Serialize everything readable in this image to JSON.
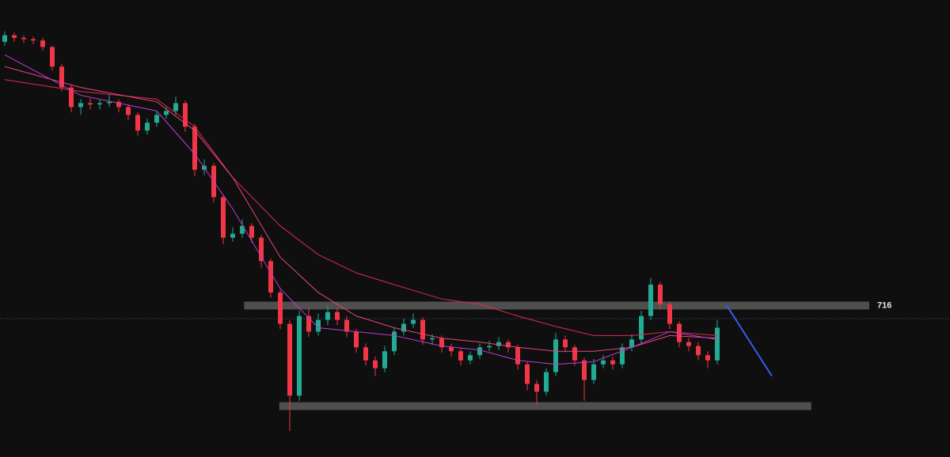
{
  "chart_data": {
    "type": "candlestick",
    "ylim": [
      600,
      950
    ],
    "up_color": "#22ab94",
    "down_color": "#f23645",
    "open": [
      918,
      923,
      921,
      920,
      919,
      914,
      899,
      883,
      868,
      871,
      870,
      871,
      872,
      868,
      862,
      850,
      856,
      862,
      865,
      871,
      853,
      820,
      823,
      799,
      768,
      771,
      777,
      768,
      750,
      726,
      702,
      647,
      708,
      696,
      705,
      711,
      705,
      696,
      684,
      674,
      668,
      681,
      696,
      702,
      705,
      690,
      691,
      684,
      681,
      674,
      678,
      684,
      685,
      688,
      684,
      671,
      656,
      650,
      665,
      690,
      684,
      674,
      659,
      671,
      674,
      671,
      684,
      690,
      708,
      732,
      717,
      702,
      688,
      685,
      678,
      674
    ],
    "high": [
      926,
      925,
      923,
      922,
      921,
      915,
      901,
      885,
      874,
      875,
      874,
      878,
      874,
      870,
      864,
      859,
      865,
      868,
      876,
      873,
      855,
      828,
      825,
      801,
      776,
      782,
      779,
      770,
      752,
      728,
      705,
      712,
      714,
      710,
      716,
      714,
      708,
      698,
      687,
      677,
      685,
      699,
      706,
      710,
      707,
      694,
      693,
      687,
      683,
      681,
      687,
      689,
      692,
      690,
      686,
      673,
      659,
      668,
      695,
      693,
      686,
      676,
      675,
      678,
      677,
      687,
      694,
      712,
      737,
      734,
      719,
      704,
      691,
      688,
      681,
      705
    ],
    "low": [
      915,
      918,
      917,
      916,
      911,
      896,
      880,
      864,
      862,
      866,
      866,
      868,
      864,
      858,
      846,
      847,
      853,
      859,
      862,
      849,
      815,
      816,
      795,
      763,
      765,
      768,
      764,
      745,
      722,
      698,
      620,
      643,
      692,
      693,
      701,
      701,
      692,
      680,
      670,
      662,
      665,
      678,
      693,
      699,
      686,
      686,
      680,
      677,
      670,
      671,
      675,
      681,
      682,
      680,
      667,
      651,
      640,
      647,
      662,
      680,
      670,
      643,
      656,
      668,
      667,
      668,
      681,
      687,
      705,
      713,
      698,
      684,
      681,
      674,
      668,
      671
    ],
    "close": [
      923,
      921,
      920,
      919,
      914,
      899,
      883,
      868,
      871,
      870,
      871,
      872,
      868,
      862,
      850,
      856,
      862,
      865,
      871,
      853,
      820,
      823,
      799,
      768,
      771,
      777,
      768,
      750,
      726,
      702,
      647,
      708,
      696,
      705,
      711,
      705,
      696,
      684,
      674,
      668,
      681,
      696,
      702,
      705,
      690,
      691,
      684,
      681,
      674,
      678,
      684,
      685,
      688,
      684,
      671,
      656,
      650,
      665,
      690,
      684,
      674,
      659,
      671,
      674,
      671,
      684,
      690,
      708,
      732,
      717,
      702,
      688,
      685,
      678,
      674,
      699
    ],
    "moving_averages": [
      {
        "color": "#e0294f",
        "x": [
          0,
          8,
          16,
          20,
          24,
          29,
          33,
          37,
          41,
          46,
          50,
          54,
          58,
          62,
          66,
          70,
          75
        ],
        "values": [
          889,
          880,
          874,
          853,
          814,
          777,
          755,
          741,
          732,
          721,
          717,
          708,
          700,
          693,
          693,
          696,
          693
        ]
      },
      {
        "color": "#e8457f",
        "x": [
          0,
          8,
          16,
          20,
          24,
          29,
          33,
          37,
          41,
          46,
          50,
          54,
          58,
          62,
          66,
          70,
          75
        ],
        "values": [
          899,
          883,
          872,
          850,
          814,
          753,
          726,
          708,
          699,
          691,
          688,
          684,
          681,
          681,
          684,
          693,
          691
        ]
      },
      {
        "color": "#c03ad0",
        "x": [
          0,
          8,
          16,
          20,
          24,
          29,
          33,
          37,
          41,
          46,
          50,
          54,
          58,
          62,
          66,
          70,
          75
        ],
        "values": [
          908,
          877,
          865,
          832,
          790,
          729,
          699,
          696,
          693,
          685,
          682,
          674,
          671,
          673,
          684,
          696,
          690
        ]
      }
    ],
    "zones": [
      {
        "label": "716",
        "low": 713,
        "high": 719,
        "x": [
          25.2,
          91
        ]
      },
      {
        "low": 636,
        "high": 642,
        "x": [
          28.9,
          84.9
        ]
      }
    ],
    "price_line": {
      "value": 706,
      "color": "#3a4f8a"
    },
    "projection": {
      "color": "#2f5fe8",
      "x": [
        76,
        80.75
      ],
      "values": [
        716,
        662
      ]
    }
  }
}
